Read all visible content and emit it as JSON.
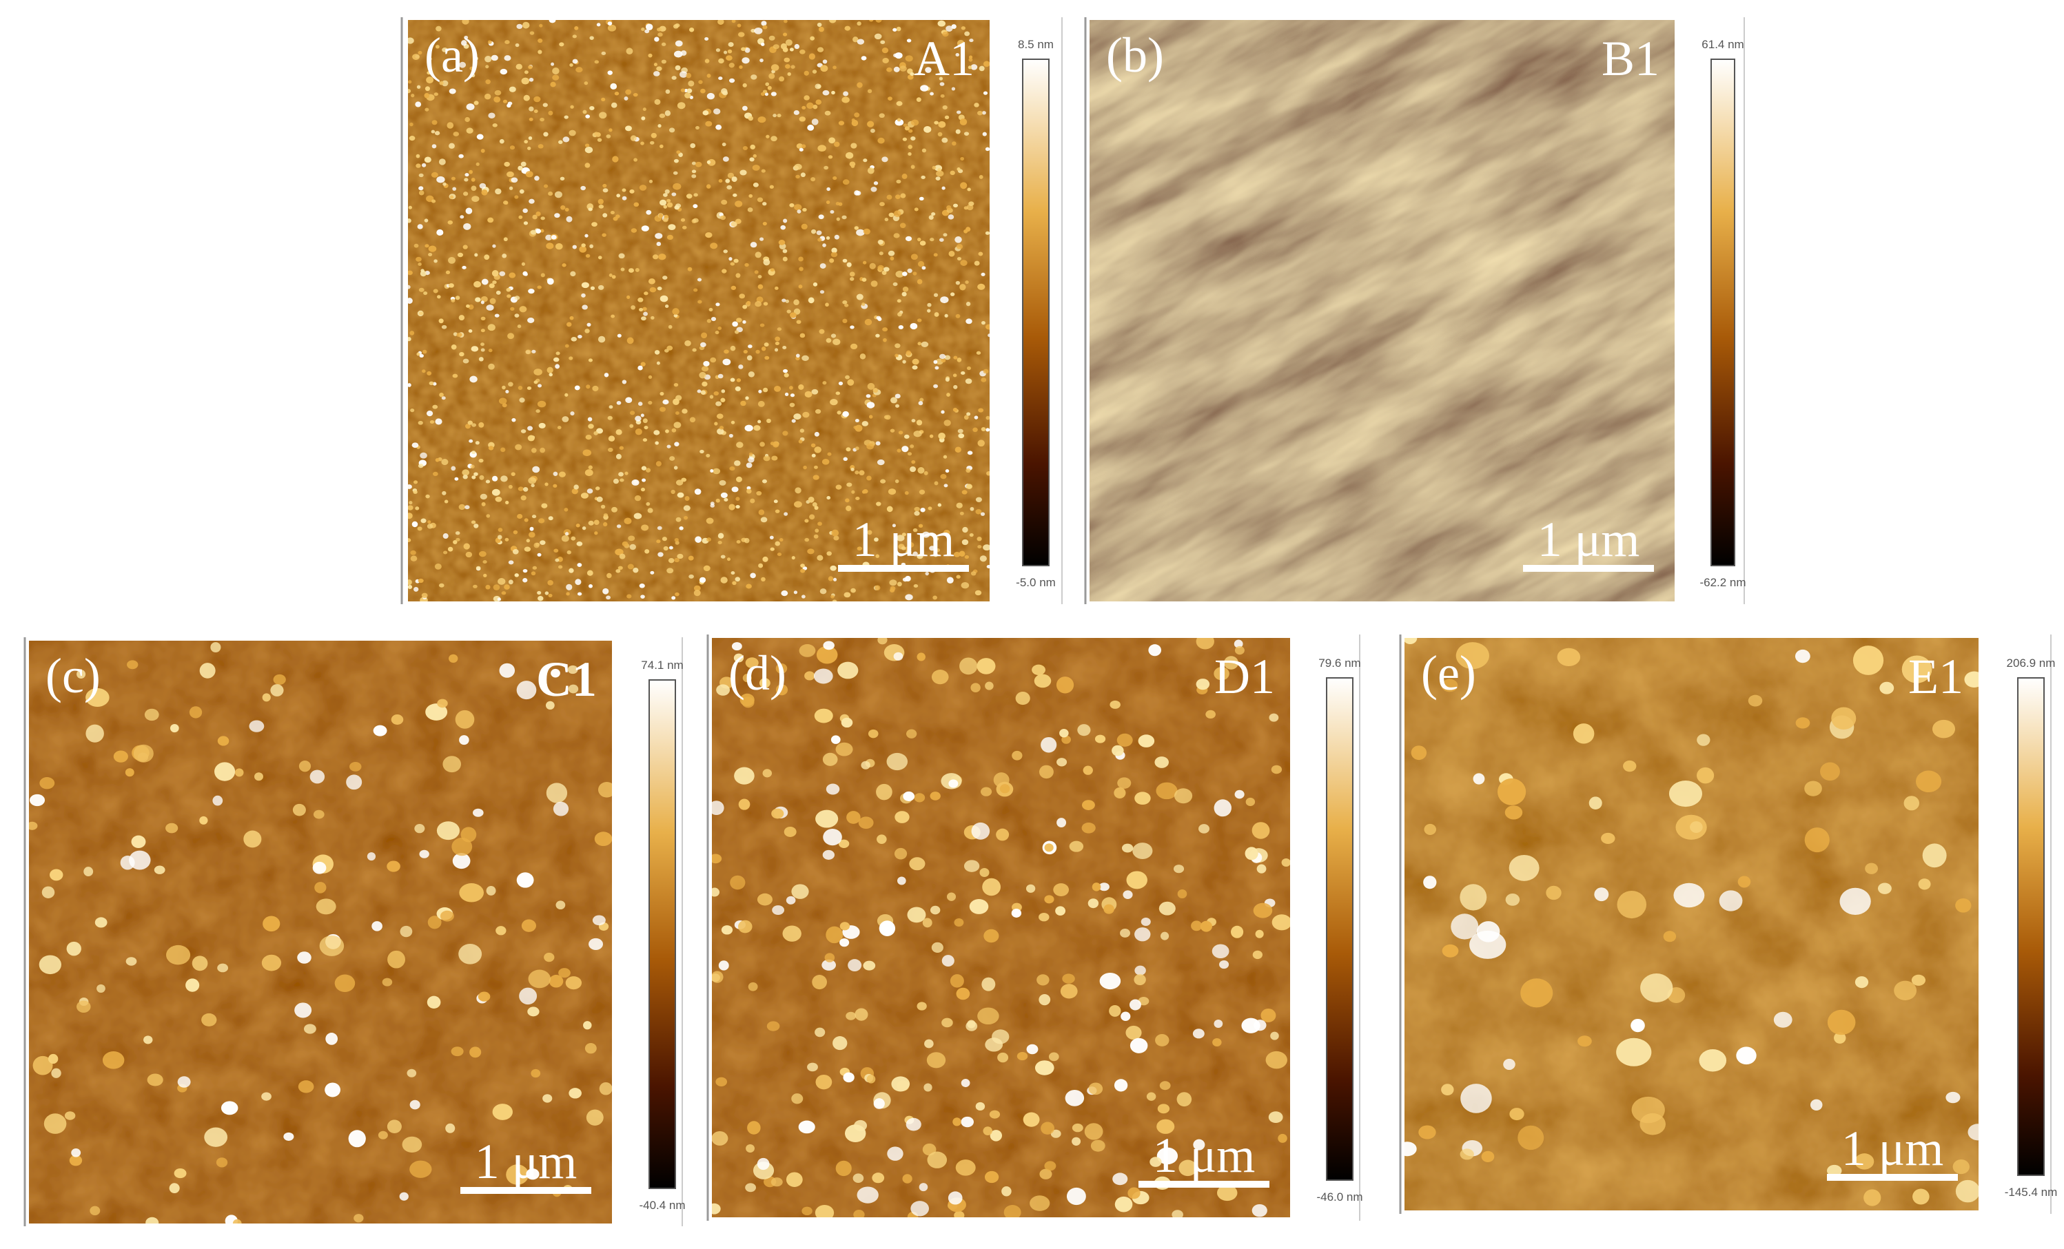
{
  "panels": [
    {
      "label": "(a)",
      "sample": "A1",
      "colorbar_max": "8.5 nm",
      "colorbar_min": "-5.0 nm",
      "scale_bar": "1 μm"
    },
    {
      "label": "(b)",
      "sample": "B1",
      "colorbar_max": "61.4 nm",
      "colorbar_min": "-62.2 nm",
      "scale_bar": "1 μm"
    },
    {
      "label": "(c)",
      "sample": "C1",
      "colorbar_max": "74.1 nm",
      "colorbar_min": "-40.4 nm",
      "scale_bar": "1 μm"
    },
    {
      "label": "(d)",
      "sample": "D1",
      "colorbar_max": "79.6 nm",
      "colorbar_min": "-46.0 nm",
      "scale_bar": "1 μm"
    },
    {
      "label": "(e)",
      "sample": "E1",
      "colorbar_max": "206.9 nm",
      "colorbar_min": "-145.4 nm",
      "scale_bar": "1 μm"
    }
  ]
}
